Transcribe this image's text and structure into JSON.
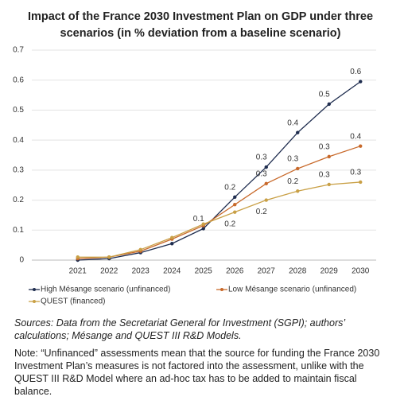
{
  "chart_data": {
    "type": "line",
    "title_lines": [
      "Impact of the France 2030 Investment Plan on GDP under three",
      "scenarios (in % deviation from a baseline scenario)"
    ],
    "categories": [
      "2021",
      "2022",
      "2023",
      "2024",
      "2025",
      "2026",
      "2027",
      "2028",
      "2029",
      "2030"
    ],
    "series": [
      {
        "name": "High Mésange scenario (unfinanced)",
        "color": "#1f2d4f",
        "values": [
          0.0,
          0.005,
          0.025,
          0.055,
          0.105,
          0.21,
          0.31,
          0.425,
          0.52,
          0.595
        ],
        "value_labels": [
          null,
          null,
          null,
          null,
          "0.1",
          "0.2",
          "0.3",
          "0.4",
          "0.5",
          "0.6"
        ]
      },
      {
        "name": "Low Mésange scenario (unfinanced)",
        "color": "#c8692a",
        "values": [
          0.005,
          0.01,
          0.03,
          0.07,
          0.115,
          0.185,
          0.255,
          0.305,
          0.345,
          0.38
        ],
        "value_labels": [
          null,
          null,
          null,
          null,
          null,
          null,
          "0.3",
          "0.3",
          "0.3",
          "0.4"
        ]
      },
      {
        "name": "QUEST (financed)",
        "color": "#c9a046",
        "values": [
          0.01,
          0.01,
          0.035,
          0.075,
          0.12,
          0.16,
          0.2,
          0.23,
          0.252,
          0.26
        ],
        "value_labels": [
          null,
          null,
          null,
          null,
          null,
          "0.2",
          "0.2",
          "0.2",
          "0.3",
          "0.3"
        ]
      }
    ],
    "ylim": [
      0,
      0.7
    ],
    "yticks": [
      0,
      0.1,
      0.2,
      0.3,
      0.4,
      0.5,
      0.6,
      0.7
    ],
    "grid": true
  },
  "notes": {
    "sources": "Sources: Data from the Secretariat General for Investment (SGPI); authors’ calculations; Mésange and QUEST III R&D Models.",
    "note": "Note: “Unfinanced” assessments mean that the source for funding the France 2030 Investment Plan’s measures is not factored into the assessment, unlike with the QUEST III R&D Model where an ad-hoc tax has to be added to maintain fiscal balance."
  }
}
